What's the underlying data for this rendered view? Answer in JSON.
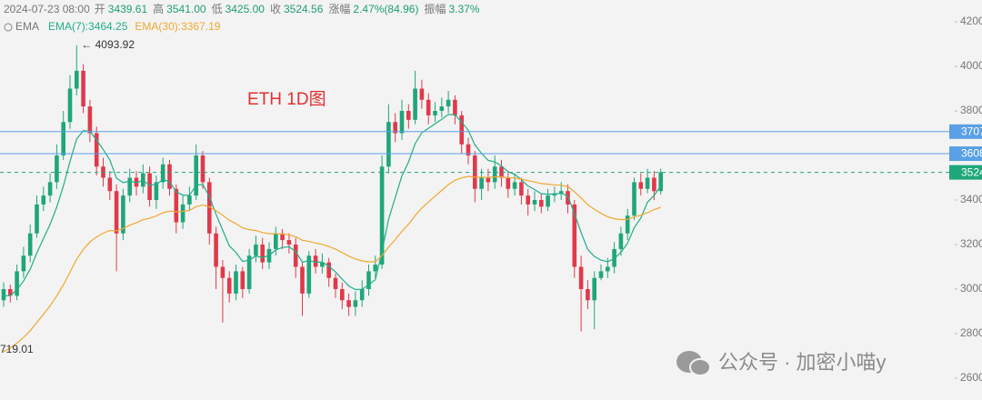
{
  "chart_data": {
    "type": "candlestick",
    "title": "ETH 1D图",
    "title_color": "#e0312f",
    "header": {
      "date": "2024-07-23 08:00",
      "items": [
        {
          "name": "开",
          "value": "3439.61"
        },
        {
          "name": "高",
          "value": "3541.00"
        },
        {
          "name": "低",
          "value": "3425.00"
        },
        {
          "name": "收",
          "value": "3524.56"
        },
        {
          "name": "涨幅",
          "value": "2.47%(84.96)"
        },
        {
          "name": "振幅",
          "value": "3.37%"
        }
      ],
      "value_color": "#1e9e78"
    },
    "legend_title": "EMA",
    "up_color": "#1fa67a",
    "down_color": "#e0394a",
    "ylim": [
      2502,
      4298
    ],
    "yticks": [
      2600,
      2800,
      3000,
      3200,
      3400,
      3600,
      3800,
      4000,
      4200
    ],
    "grid": false,
    "open": [
      2950,
      3000,
      2970,
      3080,
      3150,
      3250,
      3380,
      3420,
      3480,
      3600,
      3750,
      3900,
      3980,
      3820,
      3700,
      3550,
      3500,
      3440,
      3250,
      3420,
      3500,
      3460,
      3520,
      3400,
      3480,
      3560,
      3450,
      3300,
      3380,
      3420,
      3600,
      3480,
      3250,
      3100,
      3050,
      2980,
      3080,
      3000,
      3150,
      3200,
      3120,
      3180,
      3250,
      3220,
      3200,
      3100,
      2980,
      3150,
      3100,
      3120,
      3050,
      3000,
      2950,
      2920,
      2950,
      3000,
      3080,
      3110,
      3550,
      3750,
      3700,
      3800,
      3760,
      3900,
      3850,
      3780,
      3800,
      3820,
      3850,
      3780,
      3650,
      3600,
      3450,
      3500,
      3480,
      3550,
      3500,
      3450,
      3480,
      3420,
      3380,
      3400,
      3370,
      3420,
      3430,
      3440,
      3380,
      3100,
      3000,
      2950,
      3050,
      3080,
      3100,
      3180,
      3250,
      3330,
      3480,
      3450,
      3500,
      3439.61
    ],
    "high": [
      3030,
      3020,
      3110,
      3190,
      3290,
      3420,
      3460,
      3520,
      3650,
      3800,
      3960,
      4093.92,
      4010,
      3850,
      3730,
      3590,
      3530,
      3470,
      3450,
      3540,
      3530,
      3560,
      3550,
      3510,
      3590,
      3580,
      3470,
      3420,
      3460,
      3650,
      3620,
      3500,
      3280,
      3130,
      3080,
      3110,
      3100,
      3180,
      3240,
      3230,
      3210,
      3280,
      3270,
      3250,
      3230,
      3120,
      3170,
      3180,
      3160,
      3140,
      3070,
      3030,
      2980,
      2990,
      3040,
      3110,
      3150,
      3600,
      3830,
      3790,
      3850,
      3830,
      3980,
      3940,
      3880,
      3840,
      3860,
      3890,
      3870,
      3800,
      3680,
      3620,
      3540,
      3540,
      3600,
      3580,
      3530,
      3520,
      3500,
      3450,
      3440,
      3430,
      3450,
      3460,
      3480,
      3470,
      3400,
      3150,
      3040,
      3080,
      3110,
      3140,
      3210,
      3280,
      3360,
      3500,
      3520,
      3540,
      3530,
      3541
    ],
    "low": [
      2920,
      2940,
      2950,
      3050,
      3120,
      3230,
      3350,
      3390,
      3450,
      3580,
      3720,
      3870,
      3790,
      3660,
      3510,
      3460,
      3400,
      3080,
      3220,
      3390,
      3420,
      3430,
      3370,
      3360,
      3450,
      3420,
      3250,
      3270,
      3350,
      3400,
      3450,
      3200,
      3000,
      2850,
      2940,
      2950,
      2960,
      2980,
      3120,
      3090,
      3090,
      3150,
      3180,
      3160,
      3050,
      2880,
      2960,
      3070,
      3070,
      3010,
      2960,
      2910,
      2880,
      2880,
      2920,
      2970,
      3050,
      3090,
      3520,
      3660,
      3670,
      3720,
      3740,
      3810,
      3740,
      3750,
      3770,
      3790,
      3740,
      3610,
      3560,
      3390,
      3400,
      3440,
      3450,
      3460,
      3410,
      3420,
      3380,
      3330,
      3350,
      3340,
      3350,
      3390,
      3400,
      3340,
      3050,
      2810,
      2910,
      2820,
      3040,
      3050,
      3070,
      3150,
      3220,
      3310,
      3420,
      3430,
      3400,
      3425
    ],
    "close": [
      3000,
      2970,
      3080,
      3150,
      3250,
      3380,
      3420,
      3480,
      3600,
      3750,
      3900,
      3980,
      3820,
      3700,
      3550,
      3500,
      3440,
      3250,
      3420,
      3500,
      3460,
      3520,
      3400,
      3480,
      3560,
      3450,
      3300,
      3380,
      3420,
      3600,
      3480,
      3250,
      3100,
      3050,
      2980,
      3080,
      3000,
      3150,
      3200,
      3120,
      3180,
      3250,
      3220,
      3200,
      3100,
      2980,
      3150,
      3100,
      3120,
      3050,
      3000,
      2950,
      2920,
      2950,
      3000,
      3080,
      3110,
      3550,
      3750,
      3700,
      3800,
      3760,
      3900,
      3850,
      3780,
      3800,
      3820,
      3850,
      3780,
      3650,
      3600,
      3450,
      3500,
      3480,
      3550,
      3500,
      3450,
      3480,
      3420,
      3380,
      3400,
      3370,
      3420,
      3430,
      3440,
      3380,
      3100,
      3000,
      2950,
      3050,
      3080,
      3100,
      3180,
      3250,
      3330,
      3480,
      3450,
      3500,
      3439.61,
      3524.56
    ],
    "series": [
      {
        "name": "EMA(7):3464.25",
        "color": "#1fae8a",
        "values": [
          2970,
          2970,
          2998,
          3036,
          3089,
          3162,
          3227,
          3290,
          3368,
          3463,
          3573,
          3674,
          3711,
          3708,
          3669,
          3627,
          3580,
          3498,
          3478,
          3484,
          3478,
          3488,
          3466,
          3470,
          3492,
          3482,
          3436,
          3422,
          3421,
          3466,
          3470,
          3415,
          3336,
          3265,
          3194,
          3165,
          3124,
          3130,
          3148,
          3141,
          3151,
          3176,
          3187,
          3190,
          3168,
          3121,
          3128,
          3121,
          3121,
          3103,
          3077,
          3045,
          3014,
          2998,
          2999,
          3019,
          3042,
          3169,
          3314,
          3411,
          3508,
          3571,
          3653,
          3702,
          3722,
          3742,
          3762,
          3784,
          3783,
          3750,
          3713,
          3647,
          3610,
          3578,
          3571,
          3553,
          3527,
          3515,
          3491,
          3463,
          3447,
          3428,
          3426,
          3427,
          3430,
          3418,
          3339,
          3254,
          3178,
          3146,
          3130,
          3123,
          3137,
          3165,
          3206,
          3275,
          3319,
          3390,
          3420,
          3464.25
        ]
      },
      {
        "name": "EMA(30):3367.19",
        "color": "#f0a830",
        "values": [
          2719,
          2735,
          2757,
          2783,
          2813,
          2850,
          2887,
          2925,
          2969,
          3019,
          3076,
          3134,
          3178,
          3212,
          3234,
          3251,
          3263,
          3262,
          3272,
          3287,
          3298,
          3312,
          3318,
          3328,
          3343,
          3350,
          3347,
          3349,
          3354,
          3370,
          3377,
          3369,
          3352,
          3332,
          3309,
          3294,
          3275,
          3267,
          3263,
          3254,
          3249,
          3249,
          3247,
          3244,
          3235,
          3219,
          3214,
          3207,
          3201,
          3191,
          3179,
          3164,
          3148,
          3135,
          3126,
          3123,
          3122,
          3150,
          3189,
          3222,
          3259,
          3291,
          3330,
          3364,
          3391,
          3417,
          3443,
          3469,
          3489,
          3499,
          3506,
          3502,
          3502,
          3501,
          3504,
          3504,
          3500,
          3499,
          3494,
          3487,
          3481,
          3474,
          3471,
          3468,
          3466,
          3461,
          3437,
          3409,
          3379,
          3358,
          3340,
          3325,
          3316,
          3312,
          3313,
          3324,
          3332,
          3343,
          3357,
          3367.19
        ]
      }
    ],
    "price_lines": [
      {
        "value": 3707,
        "color": "#5aa0e6",
        "dashed": false
      },
      {
        "value": 3608,
        "color": "#5aa0e6",
        "dashed": false
      },
      {
        "value": 3524,
        "color": "#1fa67a",
        "dashed": true
      }
    ],
    "annotations": [
      {
        "text": "← 4093.92",
        "index": 11,
        "at": "high"
      },
      {
        "text": "719.01"
      }
    ],
    "watermark": "公众号 · 加密小喵y"
  }
}
